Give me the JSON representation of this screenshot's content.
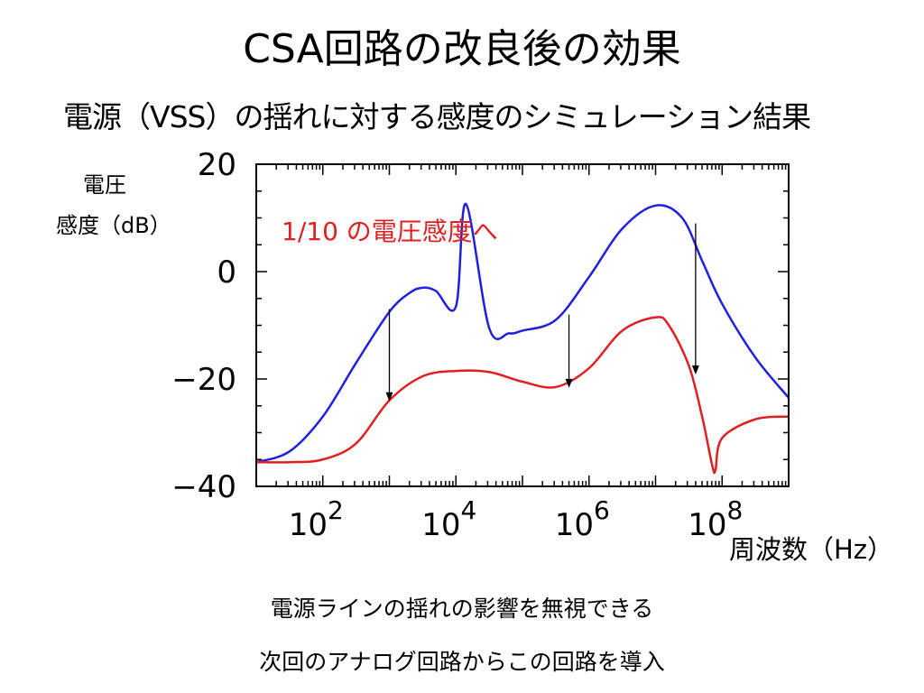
{
  "slide": {
    "title": "CSA回路の改良後の効果",
    "subtitle": "電源（VSS）の揺れに対する感度のシミュレーション結果",
    "notes": [
      "電源ラインの揺れの影響を無視できる",
      "次回のアナログ回路からこの回路を導入"
    ]
  },
  "chart_data": {
    "type": "line",
    "title": "",
    "ylabel_lines": [
      "電圧",
      "感度（dB）"
    ],
    "xlabel": "周波数（Hz）",
    "xscale": "log",
    "xlim": [
      10,
      1000000000
    ],
    "ylim": [
      -40,
      20
    ],
    "x_ticks": [
      {
        "value": 100,
        "base": "10",
        "exp": "2"
      },
      {
        "value": 10000,
        "base": "10",
        "exp": "4"
      },
      {
        "value": 1000000,
        "base": "10",
        "exp": "6"
      },
      {
        "value": 100000000,
        "base": "10",
        "exp": "8"
      }
    ],
    "y_ticks": [
      {
        "value": 20,
        "label": "20"
      },
      {
        "value": 0,
        "label": "0"
      },
      {
        "value": -20,
        "label": "−20"
      },
      {
        "value": -40,
        "label": "−40"
      }
    ],
    "grid": false,
    "series": [
      {
        "color": "#1f1fe0",
        "x": [
          10,
          31.6,
          100,
          316,
          1000,
          2000,
          3162,
          5000,
          10000,
          31623,
          63096,
          100000,
          316228,
          1000000,
          3162278,
          10000000,
          14125,
          25119000,
          50119000,
          100000000,
          316228000,
          1000000000
        ],
        "y": [
          -35.5,
          -33.5,
          -27,
          -17,
          -7.5,
          -4,
          -3,
          -3.6,
          -6.5,
          -10.5,
          -11.5,
          -11,
          -9,
          -1,
          8,
          12.3,
          12.6,
          10,
          2,
          -6,
          -16,
          -23.5
        ]
      },
      {
        "color": "#e02020",
        "x": [
          10,
          31.6,
          100,
          316,
          1000,
          3162,
          10000,
          31623,
          100000,
          316228,
          1000000,
          3162278,
          10000000,
          15849000,
          31623000,
          50119000,
          70795000,
          79433000,
          100000000,
          316228000,
          1000000000
        ],
        "y": [
          -35.5,
          -35.5,
          -35,
          -32,
          -24,
          -19.5,
          -18.5,
          -18.7,
          -20.5,
          -21.5,
          -18,
          -11,
          -8.5,
          -10,
          -17.5,
          -27,
          -36,
          -37,
          -31,
          -27.5,
          -27
        ]
      }
    ],
    "arrows": [
      {
        "x": 1000,
        "from": -7,
        "to": -24
      },
      {
        "x": 500000,
        "from": -8,
        "to": -21.5
      },
      {
        "x": 40000000,
        "from": 9,
        "to": -19
      }
    ],
    "annotation": {
      "text": "1/10 の電圧感度へ",
      "color": "#e02020"
    }
  }
}
